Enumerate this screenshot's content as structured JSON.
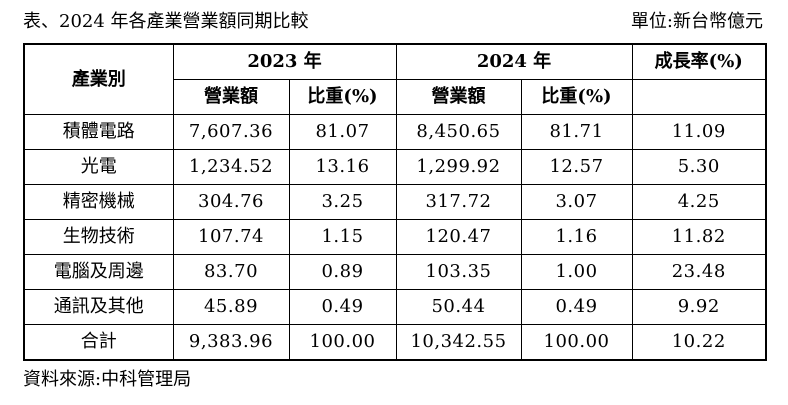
{
  "title": "表、2024 年各產業營業額同期比較",
  "unit": "單位:新台幣億元",
  "header": {
    "industry": "產業別",
    "year1": "2023 年",
    "year2": "2024 年",
    "growth": "成長率(%)",
    "revenue": "營業額",
    "share": "比重(%)"
  },
  "rows": [
    {
      "name": "積體電路",
      "rev2023": "7,607.36",
      "share2023": "81.07",
      "rev2024": "8,450.65",
      "share2024": "81.71",
      "growth": "11.09"
    },
    {
      "name": "光電",
      "rev2023": "1,234.52",
      "share2023": "13.16",
      "rev2024": "1,299.92",
      "share2024": "12.57",
      "growth": "5.30"
    },
    {
      "name": "精密機械",
      "rev2023": "304.76",
      "share2023": "3.25",
      "rev2024": "317.72",
      "share2024": "3.07",
      "growth": "4.25"
    },
    {
      "name": "生物技術",
      "rev2023": "107.74",
      "share2023": "1.15",
      "rev2024": "120.47",
      "share2024": "1.16",
      "growth": "11.82"
    },
    {
      "name": "電腦及周邊",
      "rev2023": "83.70",
      "share2023": "0.89",
      "rev2024": "103.35",
      "share2024": "1.00",
      "growth": "23.48"
    },
    {
      "name": "通訊及其他",
      "rev2023": "45.89",
      "share2023": "0.49",
      "rev2024": "50.44",
      "share2024": "0.49",
      "growth": "9.92"
    },
    {
      "name": "合計",
      "rev2023": "9,383.96",
      "share2023": "100.00",
      "rev2024": "10,342.55",
      "share2024": "100.00",
      "growth": "10.22"
    }
  ],
  "source": "資料來源:中科管理局"
}
